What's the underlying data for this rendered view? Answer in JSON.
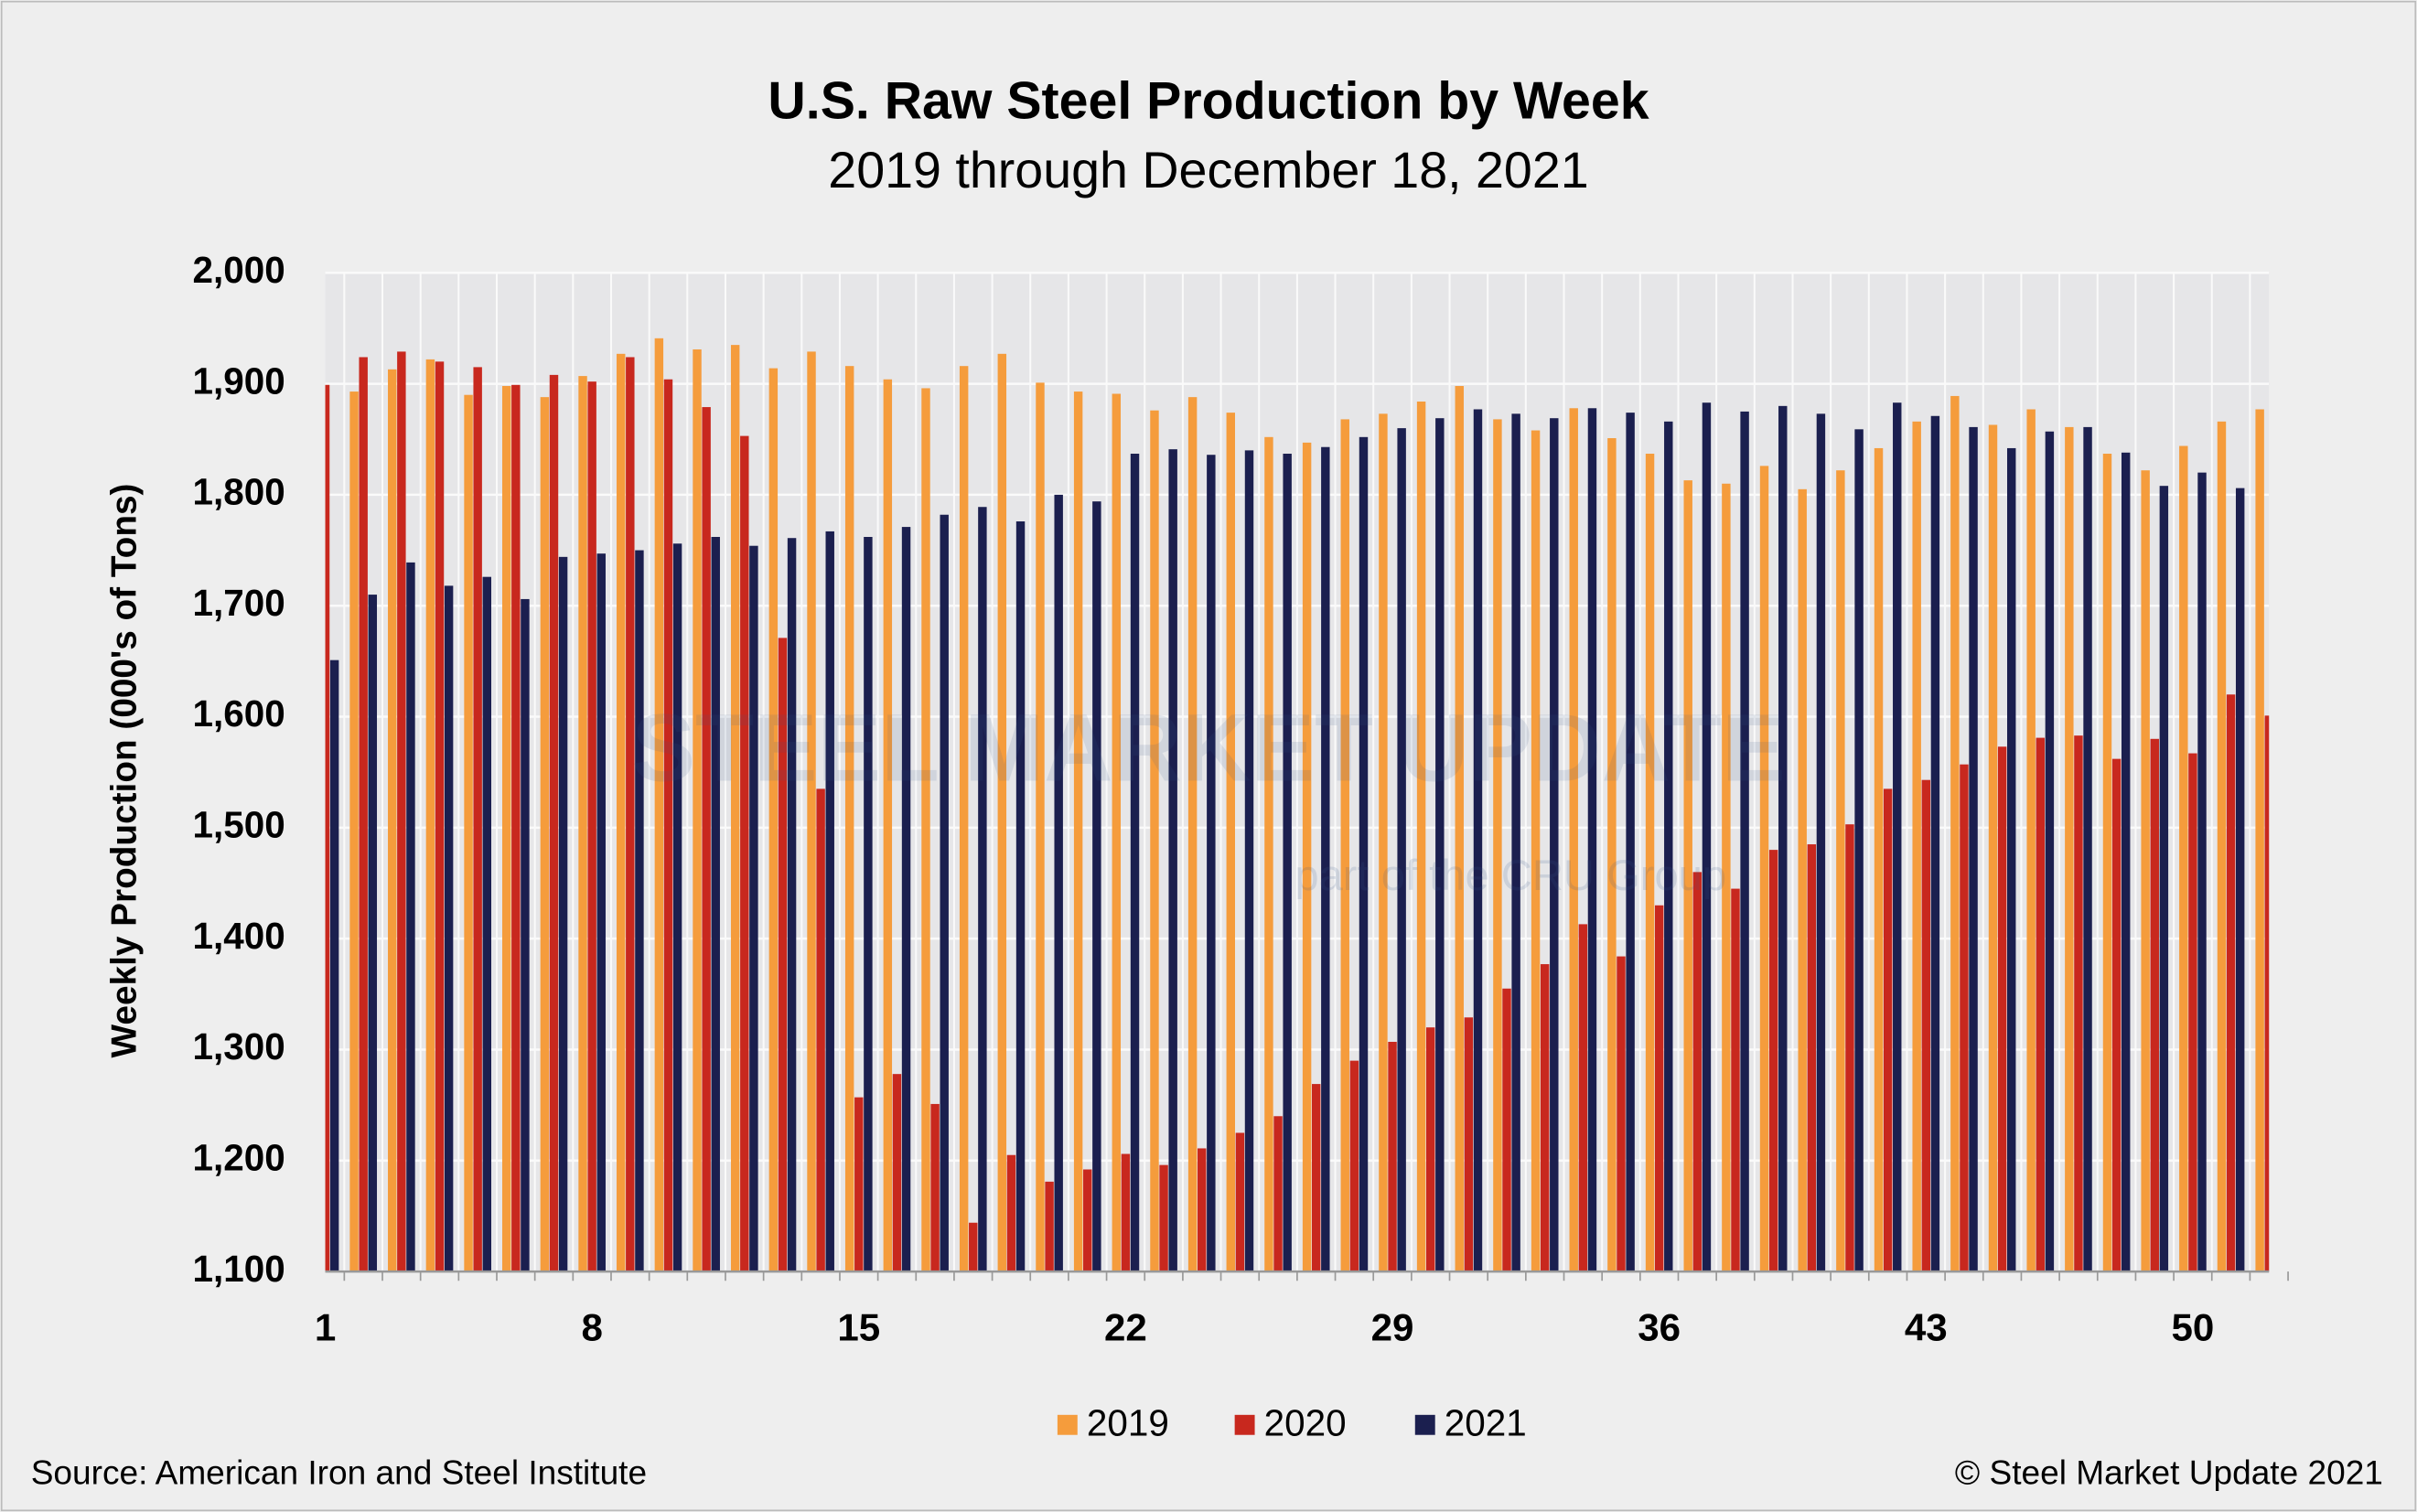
{
  "chart_data": {
    "type": "bar",
    "title": "U.S. Raw Steel Production by Week",
    "subtitle": "2019 through December 18, 2021",
    "y_label": "Weekly Production (000's of Tons)",
    "source": "Source: American Iron and Steel Institute",
    "copyright": "© Steel Market Update 2021",
    "watermark": "STEEL MARKET UPDATE",
    "watermark_sub": "part of the CRU Group",
    "categories": [
      1,
      null,
      null,
      null,
      null,
      null,
      null,
      8,
      null,
      null,
      null,
      null,
      null,
      null,
      15,
      null,
      null,
      null,
      null,
      null,
      null,
      22,
      null,
      null,
      null,
      null,
      null,
      null,
      29,
      null,
      null,
      null,
      null,
      null,
      null,
      36,
      null,
      null,
      null,
      null,
      null,
      null,
      43,
      null,
      null,
      null,
      null,
      null,
      null,
      50,
      null,
      null
    ],
    "series": [
      {
        "name": "2019",
        "color": "#f59c3c",
        "values": [
          null,
          1893,
          1913,
          1922,
          1890,
          1898,
          1888,
          1907,
          1927,
          1941,
          1931,
          1935,
          1914,
          1929,
          1916,
          1904,
          1896,
          1916,
          1927,
          1901,
          1893,
          1891,
          1876,
          1888,
          1874,
          1852,
          1847,
          1868,
          1873,
          1884,
          1898,
          1868,
          1858,
          1878,
          1851,
          1837,
          1813,
          1810,
          1826,
          1805,
          1822,
          1842,
          1866,
          1889,
          1863,
          1877,
          1861,
          1837,
          1822,
          1844,
          1866,
          1877
        ]
      },
      {
        "name": "2020",
        "color": "#c8281e",
        "values": [
          1899,
          1924,
          1929,
          1920,
          1915,
          1899,
          1908,
          1902,
          1924,
          1904,
          1879,
          1853,
          1671,
          1535,
          1257,
          1278,
          1251,
          1144,
          1205,
          1181,
          1192,
          1206,
          1196,
          1211,
          1225,
          1240,
          1269,
          1290,
          1307,
          1320,
          1329,
          1355,
          1377,
          1413,
          1384,
          1430,
          1460,
          1445,
          1480,
          1485,
          1503,
          1535,
          1543,
          1557,
          1573,
          1581,
          1583,
          1562,
          1580,
          1567,
          1620,
          1601
        ]
      },
      {
        "name": "2021",
        "color": "#1b1f4f",
        "values": [
          1651,
          1710,
          1739,
          1718,
          1726,
          1706,
          1744,
          1747,
          1750,
          1756,
          1762,
          1754,
          1761,
          1767,
          1762,
          1771,
          1782,
          1789,
          1776,
          1800,
          1794,
          1837,
          1841,
          1836,
          1840,
          1837,
          1843,
          1852,
          1860,
          1869,
          1877,
          1873,
          1869,
          1878,
          1874,
          1866,
          1883,
          1875,
          1880,
          1873,
          1859,
          1883,
          1871,
          1861,
          1842,
          1857,
          1861,
          1838,
          1808,
          1820,
          1806,
          null
        ]
      }
    ],
    "ylim": [
      1100,
      2000
    ],
    "yticks": [
      {
        "value": 1100,
        "label": "1,100"
      },
      {
        "value": 1200,
        "label": "1,200"
      },
      {
        "value": 1300,
        "label": "1,300"
      },
      {
        "value": 1400,
        "label": "1,400"
      },
      {
        "value": 1500,
        "label": "1,500"
      },
      {
        "value": 1600,
        "label": "1,600"
      },
      {
        "value": 1700,
        "label": "1,700"
      },
      {
        "value": 1800,
        "label": "1,800"
      },
      {
        "value": 1900,
        "label": "1,900"
      },
      {
        "value": 2000,
        "label": "2,000"
      }
    ],
    "grid": true
  }
}
